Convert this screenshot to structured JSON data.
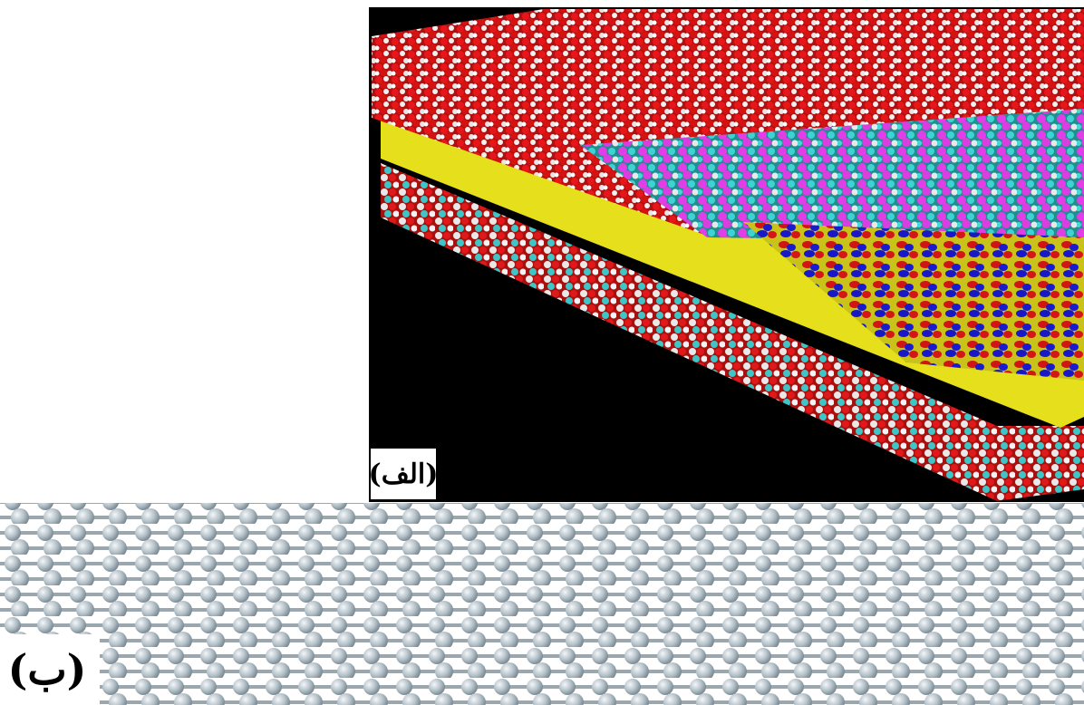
{
  "panels": [
    {
      "label": "(الف)"
    },
    {
      "label": "(ب)"
    }
  ]
}
